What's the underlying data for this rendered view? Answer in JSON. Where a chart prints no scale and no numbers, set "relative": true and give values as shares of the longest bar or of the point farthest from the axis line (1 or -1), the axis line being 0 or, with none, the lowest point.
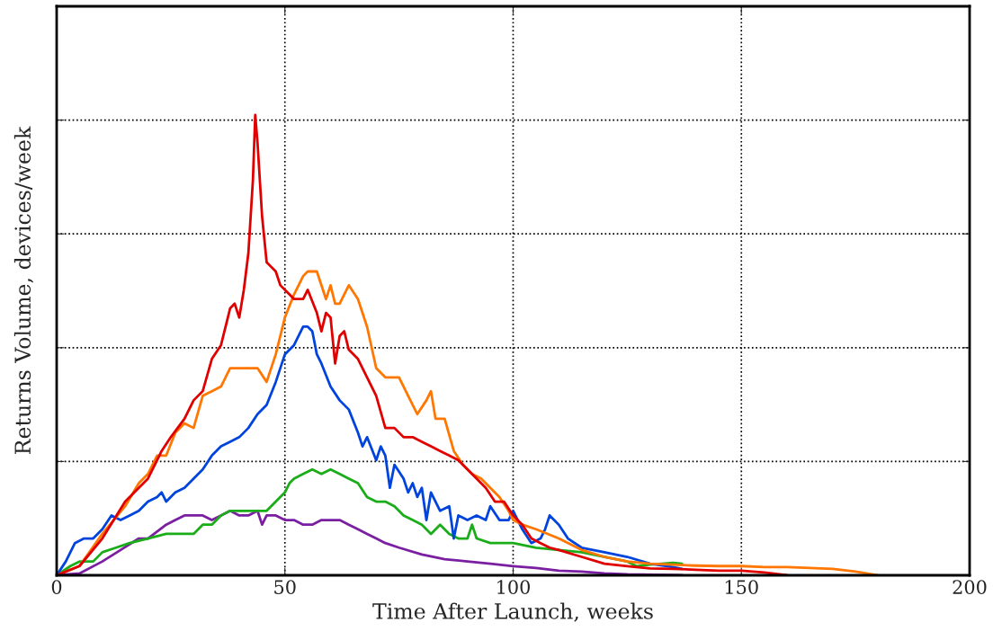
{
  "chart_data": {
    "type": "line",
    "xlabel": "Time After Launch, weeks",
    "ylabel": "Returns Volume, devices/week",
    "relative": true,
    "xlim": [
      0,
      200
    ],
    "xticks": [
      0,
      50,
      100,
      150,
      200
    ],
    "grid": true,
    "line_style": "solid",
    "series": [
      {
        "color": "#7b1fa2",
        "x": [
          0,
          5,
          10,
          14,
          18,
          20,
          24,
          26,
          28,
          30,
          32,
          34,
          36,
          38,
          40,
          42,
          44,
          45,
          46,
          48,
          50,
          52,
          54,
          56,
          58,
          60,
          62,
          64,
          66,
          68,
          70,
          72,
          75,
          80,
          85,
          90,
          95,
          100,
          105,
          110,
          115,
          120,
          125,
          137
        ],
        "values": [
          0,
          0.004,
          0.03,
          0.055,
          0.08,
          0.08,
          0.11,
          0.12,
          0.13,
          0.13,
          0.13,
          0.12,
          0.13,
          0.14,
          0.13,
          0.13,
          0.14,
          0.11,
          0.13,
          0.13,
          0.12,
          0.12,
          0.11,
          0.11,
          0.12,
          0.12,
          0.12,
          0.11,
          0.1,
          0.09,
          0.08,
          0.07,
          0.06,
          0.045,
          0.035,
          0.03,
          0.025,
          0.02,
          0.016,
          0.01,
          0.008,
          0.004,
          0.002,
          0
        ]
      },
      {
        "color": "#1aad19",
        "x": [
          0,
          3,
          5,
          8,
          10,
          13,
          16,
          20,
          24,
          28,
          30,
          32,
          34,
          36,
          38,
          40,
          42,
          44,
          46,
          48,
          50,
          51,
          52,
          54,
          56,
          58,
          60,
          62,
          64,
          66,
          68,
          70,
          72,
          74,
          76,
          78,
          80,
          82,
          84,
          86,
          88,
          90,
          91,
          92,
          95,
          100,
          105,
          110,
          115,
          120,
          125,
          127,
          130,
          135,
          137
        ],
        "values": [
          0,
          0.02,
          0.03,
          0.03,
          0.05,
          0.06,
          0.07,
          0.08,
          0.09,
          0.09,
          0.09,
          0.11,
          0.11,
          0.13,
          0.14,
          0.14,
          0.14,
          0.14,
          0.14,
          0.16,
          0.18,
          0.2,
          0.21,
          0.22,
          0.23,
          0.22,
          0.23,
          0.22,
          0.21,
          0.2,
          0.17,
          0.16,
          0.16,
          0.15,
          0.13,
          0.12,
          0.11,
          0.09,
          0.11,
          0.09,
          0.08,
          0.08,
          0.11,
          0.08,
          0.07,
          0.07,
          0.06,
          0.055,
          0.05,
          null,
          0.03,
          0.02,
          0.023,
          0.027,
          0.025
        ]
      },
      {
        "color": "#0044dd",
        "x": [
          0,
          2,
          4,
          6,
          8,
          10,
          12,
          14,
          16,
          18,
          20,
          22,
          23,
          24,
          26,
          28,
          30,
          32,
          34,
          36,
          38,
          40,
          42,
          44,
          46,
          48,
          50,
          52,
          54,
          55,
          56,
          57,
          58,
          60,
          62,
          64,
          66,
          67,
          68,
          70,
          71,
          72,
          73,
          74,
          76,
          77,
          78,
          79,
          80,
          81,
          82,
          84,
          86,
          87,
          88,
          90,
          92,
          94,
          95,
          97,
          99,
          100,
          102,
          104,
          106,
          107,
          108,
          110,
          112,
          115,
          120,
          125,
          130,
          135,
          137
        ],
        "values": [
          0,
          0.03,
          0.07,
          0.08,
          0.08,
          0.1,
          0.13,
          0.12,
          0.13,
          0.14,
          0.16,
          0.17,
          0.18,
          0.16,
          0.18,
          0.19,
          0.21,
          0.23,
          0.26,
          0.28,
          0.29,
          0.3,
          0.32,
          0.35,
          0.37,
          0.42,
          0.48,
          0.5,
          0.54,
          0.54,
          0.53,
          0.48,
          0.46,
          0.41,
          0.38,
          0.36,
          0.31,
          0.28,
          0.3,
          0.25,
          0.28,
          0.26,
          0.19,
          0.24,
          0.21,
          0.18,
          0.2,
          0.17,
          0.19,
          0.12,
          0.18,
          0.14,
          0.15,
          0.08,
          0.13,
          0.12,
          0.13,
          0.12,
          0.15,
          0.12,
          0.12,
          0.14,
          0.1,
          0.07,
          0.08,
          0.1,
          0.13,
          0.11,
          0.08,
          0.06,
          0.05,
          0.04,
          0.025,
          0.018,
          0.014
        ]
      },
      {
        "color": "#ff7700",
        "x": [
          0,
          5,
          10,
          15,
          18,
          20,
          22,
          24,
          26,
          28,
          30,
          32,
          34,
          36,
          38,
          40,
          42,
          44,
          46,
          48,
          50,
          52,
          54,
          55,
          57,
          59,
          60,
          61,
          62,
          64,
          66,
          68,
          70,
          72,
          75,
          77,
          79,
          81,
          82,
          83,
          85,
          87,
          89,
          91,
          93,
          95,
          97,
          99,
          100,
          102,
          105,
          110,
          115,
          120,
          125,
          130,
          135,
          140,
          145,
          150,
          155,
          160,
          165,
          170,
          175,
          180
        ],
        "values": [
          0,
          0.02,
          0.09,
          0.15,
          0.2,
          0.22,
          0.26,
          0.26,
          0.31,
          0.33,
          0.32,
          0.39,
          0.4,
          0.41,
          0.45,
          0.45,
          0.45,
          0.45,
          0.42,
          0.48,
          0.56,
          0.61,
          0.65,
          0.66,
          0.66,
          0.6,
          0.63,
          0.59,
          0.59,
          0.63,
          0.6,
          0.54,
          0.45,
          0.43,
          0.43,
          0.39,
          0.35,
          0.38,
          0.4,
          0.34,
          0.34,
          0.27,
          0.24,
          0.22,
          0.21,
          0.19,
          0.17,
          0.14,
          0.12,
          0.11,
          0.1,
          0.08,
          0.055,
          0.04,
          0.03,
          0.025,
          0.023,
          0.021,
          0.02,
          0.02,
          0.018,
          0.018,
          0.016,
          0.014,
          0.008,
          0
        ]
      },
      {
        "color": "#e00000",
        "x": [
          0,
          5,
          10,
          15,
          20,
          23,
          25,
          28,
          30,
          32,
          34,
          36,
          38,
          39,
          40,
          41,
          42,
          43,
          43.5,
          44,
          45,
          46,
          47,
          48,
          49,
          51,
          52,
          54,
          55,
          57,
          58,
          59,
          60,
          61,
          62,
          63,
          64,
          66,
          68,
          70,
          72,
          74,
          76,
          78,
          80,
          82,
          84,
          86,
          88,
          90,
          92,
          94,
          96,
          98,
          100,
          102,
          104,
          106,
          108,
          110,
          115,
          120,
          125,
          130,
          135,
          140,
          145,
          150,
          155,
          160
        ],
        "values": [
          0,
          0.02,
          0.08,
          0.16,
          0.21,
          0.27,
          0.3,
          0.34,
          0.38,
          0.4,
          0.47,
          0.5,
          0.58,
          0.59,
          0.56,
          0.62,
          0.7,
          0.86,
          1,
          0.94,
          0.78,
          0.68,
          0.67,
          0.66,
          0.63,
          0.61,
          0.6,
          0.6,
          0.62,
          0.57,
          0.53,
          0.57,
          0.56,
          0.46,
          0.52,
          0.53,
          0.49,
          0.47,
          0.43,
          0.39,
          0.32,
          0.32,
          0.3,
          0.3,
          0.29,
          0.28,
          0.27,
          0.26,
          0.25,
          0.23,
          0.21,
          0.19,
          0.16,
          0.16,
          0.13,
          0.11,
          0.08,
          0.07,
          0.06,
          0.055,
          0.04,
          0.025,
          0.02,
          0.015,
          0.014,
          0.012,
          0.01,
          0.01,
          0.006,
          0
        ]
      }
    ]
  }
}
